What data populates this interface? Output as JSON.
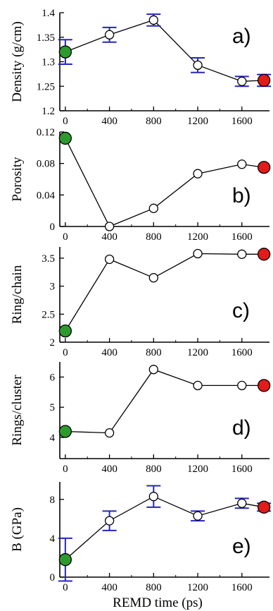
{
  "chart_data": [
    {
      "type": "scatter",
      "tag": "a)",
      "ylabel": "Density (g/cm)",
      "x": [
        0,
        400,
        800,
        1200,
        1600,
        1800
      ],
      "y": [
        1.32,
        1.355,
        1.385,
        1.293,
        1.26,
        1.262
      ],
      "yerr": [
        0.025,
        0.015,
        0.012,
        0.015,
        0.01,
        0.012
      ],
      "xlim": [
        -50,
        1850
      ],
      "ylim": [
        1.2,
        1.4
      ],
      "xticks": [
        0,
        400,
        800,
        1200,
        1600
      ],
      "xtick_labels": [
        "0",
        "400",
        "800",
        "1200",
        "1600"
      ],
      "yticks": [
        1.2,
        1.25,
        1.3,
        1.35,
        1.4
      ],
      "ytick_labels": [
        "1.2",
        "1.25",
        "1.3",
        "1.35",
        "1.4"
      ]
    },
    {
      "type": "line",
      "tag": "b)",
      "ylabel": "Porosity",
      "x": [
        0,
        400,
        800,
        1200,
        1600,
        1800
      ],
      "y": [
        0.112,
        0.0,
        0.023,
        0.067,
        0.079,
        0.075
      ],
      "xlim": [
        -50,
        1850
      ],
      "ylim": [
        0,
        0.12
      ],
      "xticks": [
        0,
        400,
        800,
        1200,
        1600
      ],
      "xtick_labels": [
        "0",
        "400",
        "800",
        "1200",
        "1600"
      ],
      "yticks": [
        0,
        0.04,
        0.08,
        0.12
      ],
      "ytick_labels": [
        "0",
        "0.04",
        "0.08",
        "0.12"
      ]
    },
    {
      "type": "line",
      "tag": "c)",
      "ylabel": "Ring/chain",
      "x": [
        0,
        400,
        800,
        1200,
        1600,
        1800
      ],
      "y": [
        2.2,
        3.48,
        3.15,
        3.58,
        3.57,
        3.57
      ],
      "xlim": [
        -50,
        1850
      ],
      "ylim": [
        2,
        3.7
      ],
      "xticks": [
        0,
        400,
        800,
        1200,
        1600
      ],
      "xtick_labels": [
        "0",
        "400",
        "800",
        "1200",
        "1600"
      ],
      "yticks": [
        2,
        2.5,
        3,
        3.5
      ],
      "ytick_labels": [
        "2",
        "2.5",
        "3",
        "3.5"
      ]
    },
    {
      "type": "line",
      "tag": "d)",
      "ylabel": "Rings/cluster",
      "x": [
        0,
        400,
        800,
        1200,
        1600,
        1800
      ],
      "y": [
        4.2,
        4.15,
        6.25,
        5.72,
        5.72,
        5.72
      ],
      "xlim": [
        -50,
        1850
      ],
      "ylim": [
        3.3,
        6.5
      ],
      "xticks": [
        0,
        400,
        800,
        1200,
        1600
      ],
      "xtick_labels": [
        "0",
        "400",
        "800",
        "1200",
        "1600"
      ],
      "yticks": [
        4,
        5,
        6
      ],
      "ytick_labels": [
        "4",
        "5",
        "6"
      ]
    },
    {
      "type": "scatter",
      "tag": "e)",
      "ylabel": "B (GPa)",
      "xlabel": "REMD time (ps)",
      "x": [
        0,
        400,
        800,
        1200,
        1600,
        1800
      ],
      "y": [
        1.8,
        5.8,
        8.3,
        6.3,
        7.6,
        7.2
      ],
      "yerr": [
        2.2,
        1.0,
        1.1,
        0.5,
        0.5,
        0.4
      ],
      "xlim": [
        -50,
        1850
      ],
      "ylim": [
        0,
        9.8
      ],
      "xticks": [
        0,
        400,
        800,
        1200,
        1600
      ],
      "xtick_labels": [
        "0",
        "400",
        "800",
        "1200",
        "1600"
      ],
      "yticks": [
        0,
        4,
        8
      ],
      "ytick_labels": [
        "0",
        "4",
        "8"
      ]
    }
  ],
  "colors": {
    "start_marker": "#2e9a2e",
    "end_marker": "#e31b1b",
    "error_bar": "#2626b8",
    "line": "#000000"
  }
}
